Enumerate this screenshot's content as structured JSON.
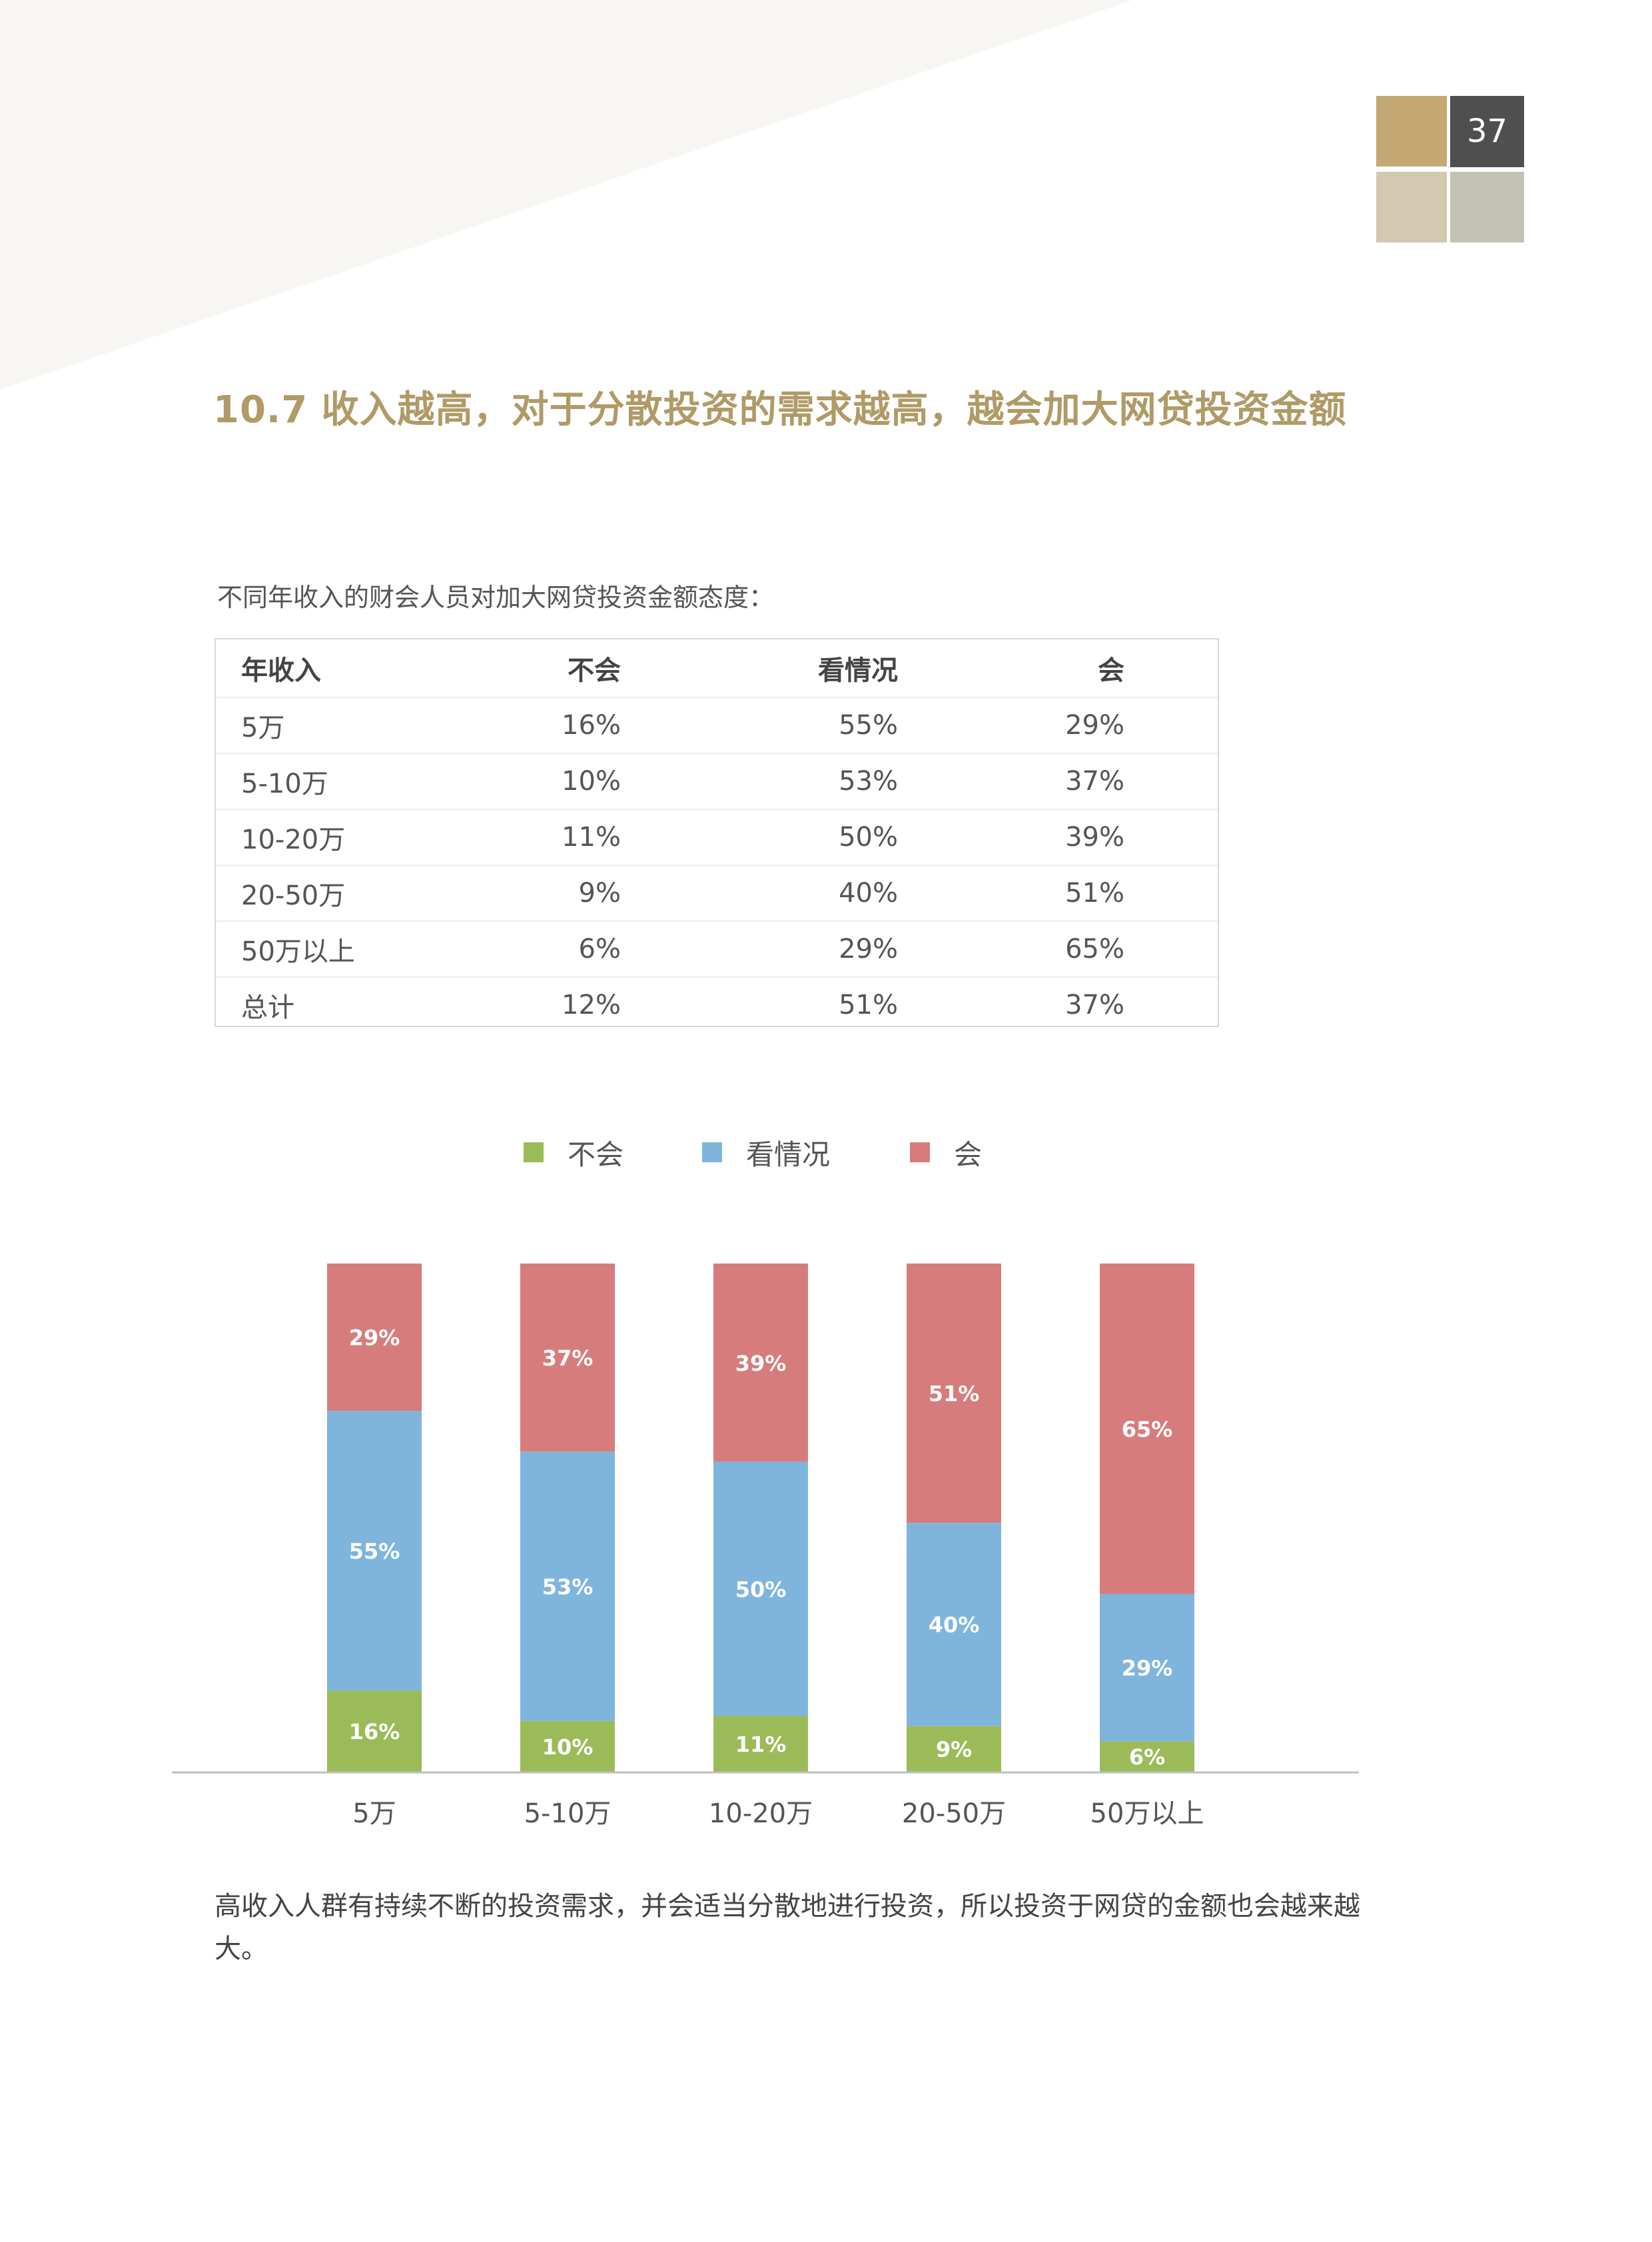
{
  "page": {
    "number": "37",
    "colors": {
      "accent": "#b09a66",
      "badge_dark": "#4f4f4f",
      "badge_gold": "#c4a874",
      "badge_beige": "#d3c8b0",
      "badge_grey": "#c3c2b4"
    }
  },
  "heading": "10.7 收入越高，对于分散投资的需求越高，越会加大网贷投资金额",
  "table": {
    "caption": "不同年收入的财会人员对加大网贷投资金额态度：",
    "headers": [
      "年收入",
      "不会",
      "看情况",
      "会"
    ],
    "rows": [
      [
        "5万",
        "16%",
        "55%",
        "29%"
      ],
      [
        "5-10万",
        "10%",
        "53%",
        "37%"
      ],
      [
        "10-20万",
        "11%",
        "50%",
        "39%"
      ],
      [
        "20-50万",
        "9%",
        "40%",
        "51%"
      ],
      [
        "50万以上",
        "6%",
        "29%",
        "65%"
      ],
      [
        "总计",
        "12%",
        "51%",
        "37%"
      ]
    ]
  },
  "chart_data": {
    "type": "bar",
    "stacked": true,
    "categories": [
      "5万",
      "5-10万",
      "10-20万",
      "20-50万",
      "50万以上"
    ],
    "series": [
      {
        "name": "不会",
        "color": "#9bbb59",
        "values": [
          16,
          10,
          11,
          9,
          6
        ]
      },
      {
        "name": "看情况",
        "color": "#7fb5dd",
        "values": [
          55,
          53,
          50,
          40,
          29
        ]
      },
      {
        "name": "会",
        "color": "#d77c7c",
        "values": [
          29,
          37,
          39,
          51,
          65
        ]
      }
    ],
    "value_suffix": "%",
    "ylim": [
      0,
      100
    ],
    "grid": false,
    "legend": "top-center"
  },
  "body_text": "高收入人群有持续不断的投资需求，并会适当分散地进行投资，所以投资于网贷的金额也会越来越大。"
}
